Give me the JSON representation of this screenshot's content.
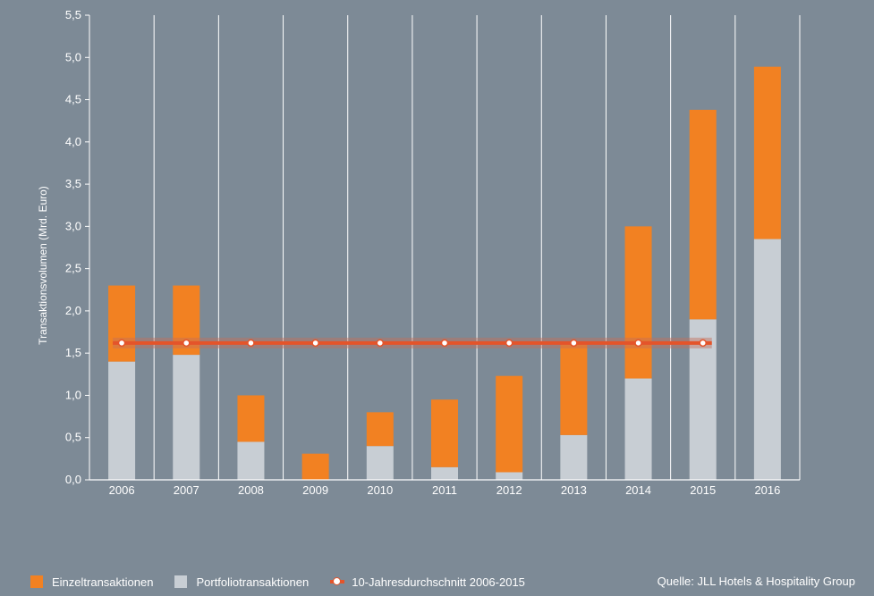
{
  "chart_data": {
    "type": "bar",
    "stacked": true,
    "title": "",
    "ylabel": "Transaktionsvolumen (Mrd. Euro)",
    "xlabel": "",
    "ylim": [
      0,
      5.5
    ],
    "yticks": [
      "0,0",
      "0,5",
      "1,0",
      "1,5",
      "2,0",
      "2,5",
      "3,0",
      "3,5",
      "4,0",
      "4,5",
      "5,0",
      "5,5"
    ],
    "categories": [
      "2006",
      "2007",
      "2008",
      "2009",
      "2010",
      "2011",
      "2012",
      "2013",
      "2014",
      "2015",
      "2016"
    ],
    "series": [
      {
        "name": "Portfoliotransaktionen",
        "color": "#c8ced4",
        "values": [
          1.4,
          1.48,
          0.45,
          0.0,
          0.4,
          0.15,
          0.09,
          0.53,
          1.2,
          1.9,
          2.85
        ]
      },
      {
        "name": "Einzeltransaktionen",
        "color": "#f28122",
        "values": [
          0.9,
          0.82,
          0.55,
          0.31,
          0.4,
          0.8,
          1.14,
          1.09,
          1.8,
          2.48,
          2.04
        ]
      }
    ],
    "average_line": {
      "name": "10-Jahresdurchschnitt 2006-2015",
      "value": 1.62,
      "from": "2006",
      "to": "2015",
      "color": "#e4542a"
    },
    "grid": true
  },
  "legend": {
    "items": [
      {
        "label": "Einzeltransaktionen",
        "color": "#f28122"
      },
      {
        "label": "Portfoliotransaktionen",
        "color": "#c8ced4"
      },
      {
        "label": "10-Jahresdurchschnitt 2006-2015",
        "color": "#e4542a"
      }
    ]
  },
  "source": "Quelle: JLL Hotels & Hospitality Group"
}
